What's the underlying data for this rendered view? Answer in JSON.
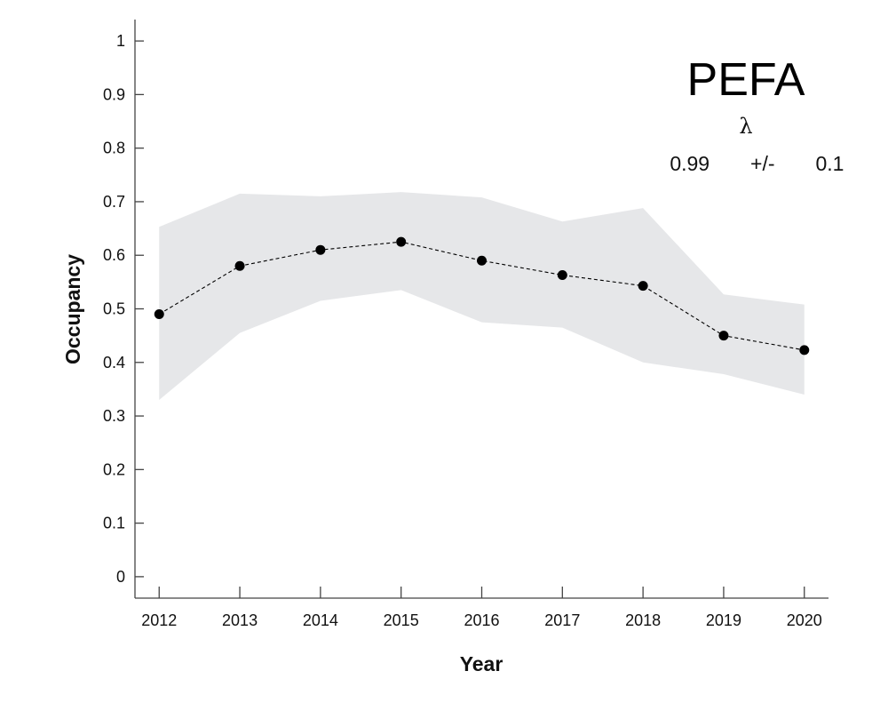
{
  "chart_data": {
    "type": "line",
    "title": "PEFA",
    "annotation": {
      "symbol": "λ",
      "value": "0.99",
      "separator": "+/-",
      "error": "0.1"
    },
    "xlabel": "Year",
    "ylabel": "Occupancy",
    "x": [
      2012,
      2013,
      2014,
      2015,
      2016,
      2017,
      2018,
      2019,
      2020
    ],
    "xlim": [
      2011.7,
      2020.3
    ],
    "ylim": [
      -0.04,
      1.04
    ],
    "yticks": [
      0,
      0.1,
      0.2,
      0.3,
      0.4,
      0.5,
      0.6,
      0.7,
      0.8,
      0.9,
      1
    ],
    "ytick_labels": [
      "0",
      "0.1",
      "0.2",
      "0.3",
      "0.4",
      "0.5",
      "0.6",
      "0.7",
      "0.8",
      "0.9",
      "1"
    ],
    "grid": false,
    "series": [
      {
        "values": [
          0.49,
          0.58,
          0.61,
          0.625,
          0.59,
          0.563,
          0.543,
          0.45,
          0.423
        ],
        "lower": [
          0.33,
          0.455,
          0.515,
          0.535,
          0.475,
          0.465,
          0.4,
          0.378,
          0.34
        ],
        "upper": [
          0.653,
          0.715,
          0.71,
          0.718,
          0.708,
          0.663,
          0.688,
          0.527,
          0.508
        ],
        "line_style": "dashed",
        "marker": "circle",
        "color": "#000000",
        "band_color": "#e6e7e9"
      }
    ]
  }
}
